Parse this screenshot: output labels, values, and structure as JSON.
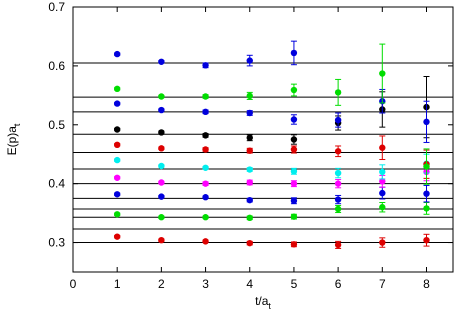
{
  "chart_data": {
    "type": "scatter",
    "title": "",
    "xlabel": "t/a",
    "xlabel_sub": "t",
    "ylabel": "E(p)a",
    "ylabel_sub": "t",
    "xlim": [
      0,
      8.6
    ],
    "ylim": [
      0.25,
      0.7
    ],
    "xticks": [
      0,
      1,
      2,
      3,
      4,
      5,
      6,
      7,
      8
    ],
    "xtick_labels": [
      "0",
      "1",
      "2",
      "3",
      "4",
      "5",
      "6",
      "7",
      "8"
    ],
    "yticks": [
      0.3,
      0.4,
      0.5,
      0.6,
      0.7
    ],
    "ytick_labels": [
      "0.3",
      "0.4",
      "0.5",
      "0.6",
      "0.7"
    ],
    "grid": false,
    "legend": "none",
    "reference_lines": [
      0.3,
      0.323,
      0.343,
      0.357,
      0.375,
      0.4,
      0.425,
      0.453,
      0.484,
      0.522,
      0.547,
      0.605
    ],
    "series": [
      {
        "color": "#dd0000",
        "x": [
          1,
          2,
          3,
          4,
          5,
          6,
          7,
          8
        ],
        "y": [
          0.31,
          0.304,
          0.302,
          0.299,
          0.297,
          0.296,
          0.3,
          0.304
        ],
        "err": [
          0.002,
          0.002,
          0.002,
          0.003,
          0.004,
          0.006,
          0.008,
          0.01
        ]
      },
      {
        "color": "#00dd00",
        "x": [
          1,
          2,
          3,
          4,
          5,
          6,
          7,
          8
        ],
        "y": [
          0.348,
          0.343,
          0.343,
          0.342,
          0.344,
          0.357,
          0.36,
          0.358
        ],
        "err": [
          0.002,
          0.002,
          0.002,
          0.003,
          0.004,
          0.006,
          0.008,
          0.01
        ]
      },
      {
        "color": "#0000dd",
        "x": [
          1,
          2,
          3,
          4,
          5,
          6,
          7,
          8
        ],
        "y": [
          0.382,
          0.378,
          0.377,
          0.372,
          0.371,
          0.373,
          0.384,
          0.383
        ],
        "err": [
          0.002,
          0.002,
          0.002,
          0.003,
          0.005,
          0.007,
          0.01,
          0.014
        ]
      },
      {
        "color": "#ff00ff",
        "x": [
          1,
          2,
          3,
          4,
          5,
          6,
          7,
          8
        ],
        "y": [
          0.41,
          0.402,
          0.4,
          0.402,
          0.4,
          0.4,
          0.404,
          0.42
        ],
        "err": [
          0.002,
          0.002,
          0.003,
          0.004,
          0.005,
          0.007,
          0.01,
          0.015
        ]
      },
      {
        "color": "#00eeee",
        "x": [
          1,
          2,
          3,
          4,
          5,
          6,
          7,
          8
        ],
        "y": [
          0.44,
          0.43,
          0.427,
          0.424,
          0.421,
          0.418,
          0.42,
          0.434
        ],
        "err": [
          0.002,
          0.002,
          0.002,
          0.003,
          0.005,
          0.008,
          0.012,
          0.016
        ]
      },
      {
        "color": "#dd0000",
        "x": [
          1,
          2,
          3,
          4,
          5,
          6,
          7,
          8
        ],
        "y": [
          0.466,
          0.46,
          0.458,
          0.456,
          0.458,
          0.455,
          0.461,
          0.433
        ],
        "err": [
          0.002,
          0.002,
          0.003,
          0.004,
          0.006,
          0.009,
          0.02,
          0.024
        ]
      },
      {
        "color": "#000000",
        "x": [
          1,
          2,
          3,
          4,
          5,
          6,
          7,
          8
        ],
        "y": [
          0.492,
          0.487,
          0.482,
          0.478,
          0.475,
          0.503,
          0.526,
          0.53
        ],
        "err": [
          0.002,
          0.002,
          0.003,
          0.005,
          0.008,
          0.012,
          0.03,
          0.052
        ]
      },
      {
        "color": "#0000dd",
        "x": [
          1,
          2,
          3,
          4,
          5,
          6,
          7,
          8
        ],
        "y": [
          0.536,
          0.525,
          0.522,
          0.52,
          0.509,
          0.508,
          0.54,
          0.505
        ],
        "err": [
          0.002,
          0.002,
          0.003,
          0.004,
          0.008,
          0.012,
          0.02,
          0.035
        ]
      },
      {
        "color": "#00dd00",
        "x": [
          1,
          2,
          3,
          4,
          5,
          6,
          7,
          8
        ],
        "y": [
          0.561,
          0.548,
          0.548,
          0.549,
          0.559,
          0.555,
          0.587,
          0.429
        ],
        "err": [
          0.002,
          0.002,
          0.003,
          0.006,
          0.01,
          0.022,
          0.05,
          0.03
        ]
      },
      {
        "color": "#0000dd",
        "x": [
          1,
          2,
          3,
          4,
          5
        ],
        "y": [
          0.62,
          0.607,
          0.601,
          0.609,
          0.622
        ],
        "err": [
          0.002,
          0.002,
          0.004,
          0.009,
          0.02
        ]
      }
    ]
  }
}
